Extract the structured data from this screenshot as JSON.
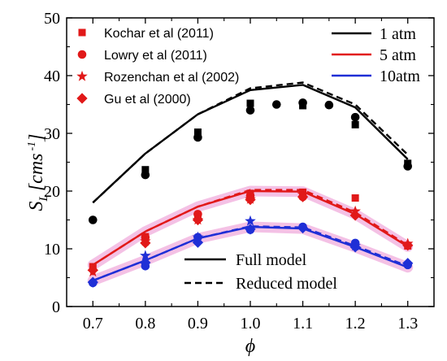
{
  "chart_data": {
    "type": "scatter",
    "xlabel": "ϕ",
    "ylabel": {
      "main": "S",
      "sub": "L",
      "unit": "[cms",
      "exp": "-1",
      "close": "]"
    },
    "xlim": [
      0.65,
      1.35
    ],
    "ylim": [
      0,
      50
    ],
    "xticks": [
      0.7,
      0.8,
      0.9,
      1.0,
      1.1,
      1.2,
      1.3
    ],
    "xtick_labels": [
      "0.7",
      "0.8",
      "0.9",
      "1.0",
      "1.1",
      "1.2",
      "1.3"
    ],
    "yticks": [
      0,
      10,
      20,
      30,
      40,
      50
    ],
    "ytick_labels": [
      "0",
      "10",
      "20",
      "30",
      "40",
      "50"
    ],
    "grid": false,
    "colors": {
      "p1": "#000000",
      "p5": "#e11919",
      "p10": "#1f2fd6",
      "legend_marker": "#e11919",
      "halo": "#f2b6e0"
    },
    "marker_legend": [
      {
        "label": "Kochar et al (2011)",
        "marker": "square"
      },
      {
        "label": "Lowry et al (2011)",
        "marker": "circle"
      },
      {
        "label": "Rozenchan et al (2002)",
        "marker": "star"
      },
      {
        "label": "Gu et al (2000)",
        "marker": "diamond"
      }
    ],
    "pressure_legend": [
      {
        "label": "1 atm",
        "color": "#000000"
      },
      {
        "label": "5 atm",
        "color": "#e11919"
      },
      {
        "label": "10atm",
        "color": "#1f2fd6"
      }
    ],
    "model_legend": [
      {
        "label": "Full model",
        "dash": "solid"
      },
      {
        "label": "Reduced model",
        "dash": "dashed"
      }
    ],
    "lines": [
      {
        "pressure": "1 atm",
        "model": "full",
        "color": "#000000",
        "x": [
          0.7,
          0.8,
          0.9,
          1.0,
          1.1,
          1.2,
          1.3
        ],
        "y": [
          18.0,
          26.5,
          33.3,
          37.5,
          38.4,
          34.5,
          25.5
        ]
      },
      {
        "pressure": "1 atm",
        "model": "reduced",
        "color": "#000000",
        "x": [
          0.7,
          0.8,
          0.9,
          1.0,
          1.1,
          1.2,
          1.3
        ],
        "y": [
          18.0,
          26.5,
          33.3,
          37.8,
          38.8,
          35.0,
          26.3
        ]
      },
      {
        "pressure": "5 atm",
        "model": "full",
        "color": "#e11919",
        "x": [
          0.7,
          0.8,
          0.9,
          1.0,
          1.1,
          1.2,
          1.3
        ],
        "y": [
          7.2,
          13.0,
          17.3,
          20.0,
          19.9,
          16.0,
          10.4
        ]
      },
      {
        "pressure": "5 atm",
        "model": "reduced",
        "color": "#e11919",
        "x": [
          0.7,
          0.8,
          0.9,
          1.0,
          1.1,
          1.2,
          1.3
        ],
        "y": [
          7.2,
          13.0,
          17.3,
          20.2,
          20.2,
          16.3,
          10.6
        ]
      },
      {
        "pressure": "10atm",
        "model": "full",
        "color": "#1f2fd6",
        "x": [
          0.7,
          0.8,
          0.9,
          1.0,
          1.1,
          1.2,
          1.3
        ],
        "y": [
          4.5,
          8.0,
          11.8,
          13.8,
          13.5,
          10.3,
          6.8
        ]
      },
      {
        "pressure": "10atm",
        "model": "reduced",
        "color": "#1f2fd6",
        "x": [
          0.7,
          0.8,
          0.9,
          1.0,
          1.1,
          1.2,
          1.3
        ],
        "y": [
          4.5,
          8.0,
          11.8,
          13.9,
          13.7,
          10.5,
          7.0
        ]
      }
    ],
    "points": [
      {
        "source": "Kochar et al (2011)",
        "marker": "square",
        "pressure": "1 atm",
        "color": "#000000",
        "x": [
          0.8,
          0.9,
          1.0,
          1.1,
          1.2,
          1.3
        ],
        "y": [
          23.7,
          30.2,
          35.2,
          34.8,
          31.5,
          24.8
        ]
      },
      {
        "source": "Lowry et al (2011)",
        "marker": "circle",
        "pressure": "1 atm",
        "color": "#000000",
        "x": [
          0.7,
          0.8,
          0.9,
          1.0,
          1.05,
          1.1,
          1.15,
          1.2,
          1.3
        ],
        "y": [
          15.0,
          22.8,
          29.3,
          34.0,
          35.0,
          35.3,
          34.9,
          32.8,
          24.3
        ]
      },
      {
        "source": "Kochar et al (2011)",
        "marker": "square",
        "pressure": "5 atm",
        "color": "#e11919",
        "x": [
          0.7,
          0.8,
          0.9,
          1.0,
          1.1,
          1.2,
          1.3
        ],
        "y": [
          6.9,
          12.1,
          15.6,
          19.6,
          19.8,
          18.8,
          10.5
        ]
      },
      {
        "source": "Lowry et al (2011)",
        "marker": "circle",
        "pressure": "5 atm",
        "color": "#e11919",
        "x": [
          0.8,
          0.9,
          1.0,
          1.1
        ],
        "y": [
          12.0,
          16.0,
          19.2,
          19.0
        ]
      },
      {
        "source": "Rozenchan et al (2002)",
        "marker": "star",
        "pressure": "5 atm",
        "color": "#e11919",
        "x": [
          0.7,
          0.8,
          0.9,
          1.0,
          1.1,
          1.2,
          1.3
        ],
        "y": [
          6.0,
          11.3,
          15.0,
          18.6,
          19.4,
          16.5,
          10.9
        ]
      },
      {
        "source": "Gu et al (2000)",
        "marker": "diamond",
        "pressure": "5 atm",
        "color": "#e11919",
        "x": [
          0.7,
          0.8,
          0.9,
          1.0,
          1.1,
          1.2,
          1.3
        ],
        "y": [
          6.3,
          11.0,
          15.0,
          18.5,
          19.0,
          15.8,
          10.6
        ]
      },
      {
        "source": "Lowry et al (2011)",
        "marker": "circle",
        "pressure": "10atm",
        "color": "#1f2fd6",
        "x": [
          0.7,
          0.8,
          0.9,
          1.0,
          1.1,
          1.2,
          1.3
        ],
        "y": [
          4.1,
          7.0,
          12.0,
          13.3,
          13.8,
          11.0,
          7.2
        ]
      },
      {
        "source": "Rozenchan et al (2002)",
        "marker": "star",
        "pressure": "10atm",
        "color": "#1f2fd6",
        "x": [
          0.8,
          0.9,
          1.0,
          1.2
        ],
        "y": [
          8.8,
          12.0,
          14.8,
          10.5
        ]
      },
      {
        "source": "Gu et al (2000)",
        "marker": "diamond",
        "pressure": "10atm",
        "color": "#1f2fd6",
        "x": [
          0.7,
          0.8,
          0.9,
          1.0,
          1.1,
          1.2,
          1.3
        ],
        "y": [
          4.2,
          7.6,
          11.1,
          13.4,
          13.6,
          10.3,
          7.5
        ]
      }
    ]
  }
}
